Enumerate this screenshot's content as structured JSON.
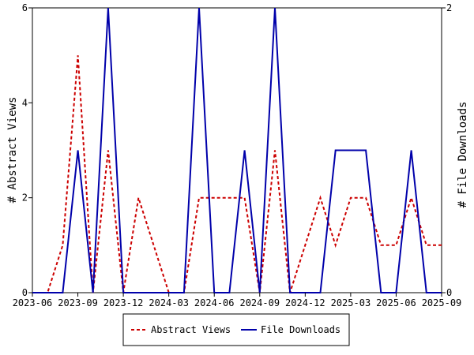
{
  "chart_data": {
    "type": "line",
    "x": [
      "2023-06",
      "2023-07",
      "2023-08",
      "2023-09",
      "2023-10",
      "2023-11",
      "2023-12",
      "2024-01",
      "2024-02",
      "2024-03",
      "2024-04",
      "2024-05",
      "2024-06",
      "2024-07",
      "2024-08",
      "2024-09",
      "2024-10",
      "2024-11",
      "2024-12",
      "2025-01",
      "2025-02",
      "2025-03",
      "2025-04",
      "2025-05",
      "2025-06",
      "2025-07",
      "2025-08",
      "2025-09"
    ],
    "x_ticks": [
      "2023-06",
      "2023-09",
      "2023-12",
      "2024-03",
      "2024-06",
      "2024-09",
      "2024-12",
      "2025-03",
      "2025-06",
      "2025-09"
    ],
    "y_left": {
      "label": "# Abstract Views",
      "range": [
        0,
        6
      ],
      "ticks": [
        "0",
        "2",
        "4",
        "6"
      ]
    },
    "y_right": {
      "label": "# File Downloads",
      "range": [
        0,
        2
      ],
      "ticks": [
        "0",
        "2"
      ]
    },
    "series": [
      {
        "name": "Abstract Views",
        "axis": "left",
        "color": "#cc0000",
        "dash": true,
        "values": [
          0,
          0,
          1,
          5,
          0,
          3,
          0,
          2,
          1,
          0,
          0,
          2,
          2,
          2,
          2,
          0,
          3,
          0,
          1,
          2,
          1,
          2,
          2,
          1,
          1,
          2,
          1,
          1
        ]
      },
      {
        "name": "File Downloads",
        "axis": "right",
        "color": "#0000aa",
        "dash": false,
        "values": [
          0,
          0,
          0,
          1,
          0,
          2,
          0,
          0,
          0,
          0,
          0,
          2,
          0,
          0,
          1,
          0,
          2,
          0,
          0,
          0,
          1,
          1,
          1,
          0,
          0,
          1,
          0,
          0
        ]
      }
    ],
    "legend": {
      "placement": "bottom-center"
    },
    "grid": false
  }
}
